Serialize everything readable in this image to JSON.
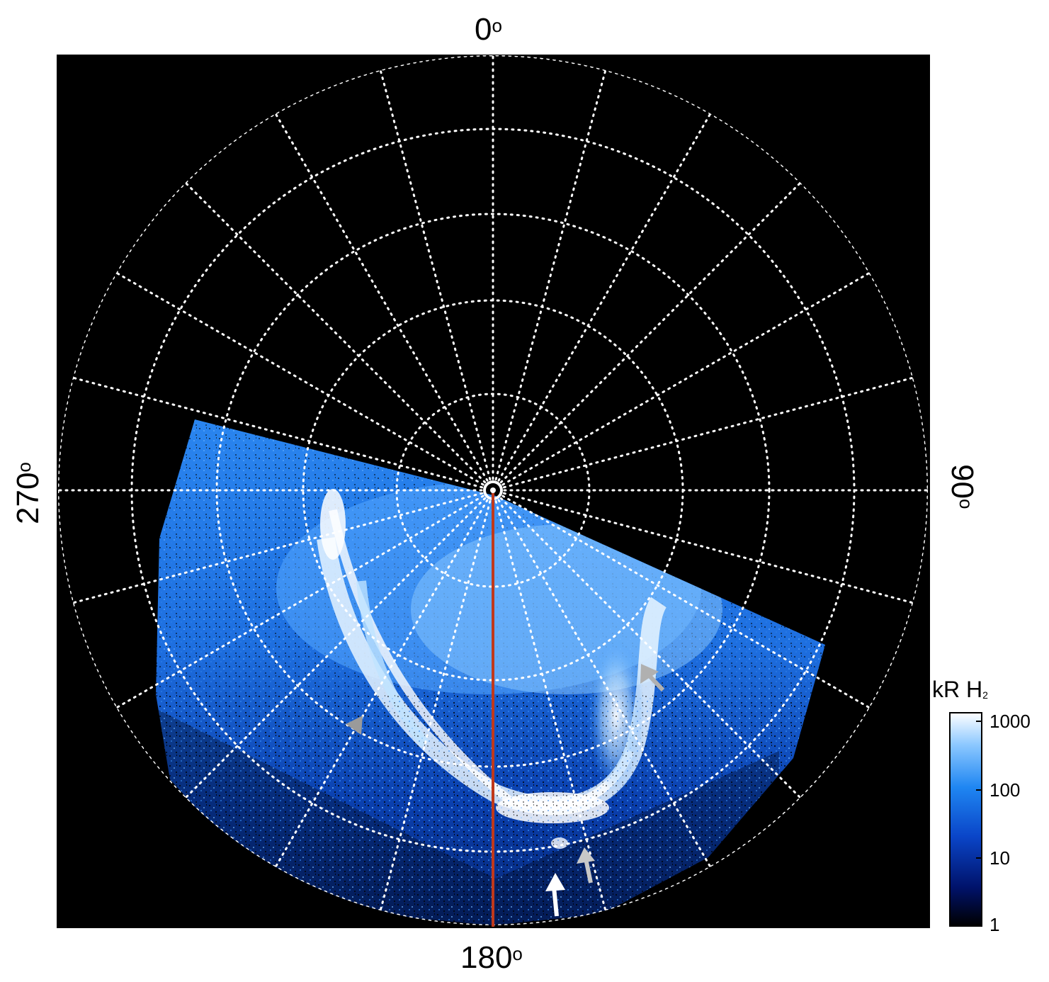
{
  "image": {
    "description_type": "polar auroral projection",
    "background": "#000000",
    "grid_color": "#ffffff",
    "meridian_color": "#c0391b",
    "aurora_colors": [
      "#000010",
      "#001a80",
      "#0a55d8",
      "#3d9bff",
      "#bfe3ff",
      "#ffffff"
    ]
  },
  "labels": {
    "top": "0",
    "bottom": "180",
    "left": "270",
    "right": "90",
    "degree_symbol": "o"
  },
  "colorbar": {
    "title": "kR H",
    "title_subscript": "2",
    "ticks": [
      "1000",
      "100",
      "10",
      "1"
    ],
    "scale": "log"
  }
}
